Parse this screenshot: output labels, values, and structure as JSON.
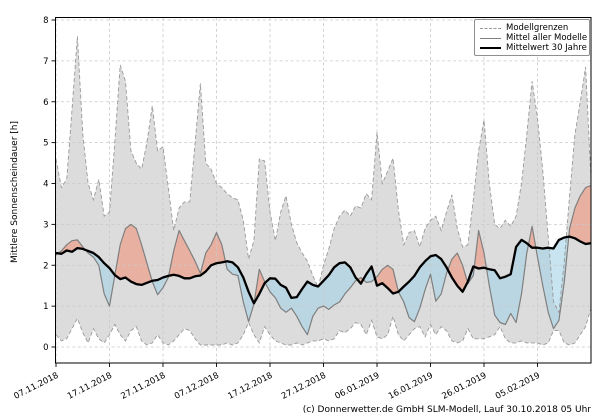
{
  "figure": {
    "ylabel": "Mittlere Sonnenscheindauer [h]",
    "footer": "(c) Donnerwetter.de GmbH SLM-Modell, Lauf 30.10.2018 05 Uhr"
  },
  "legend": {
    "items": [
      {
        "label": "Modellgrenzen",
        "style": "dashed-gray"
      },
      {
        "label": "Mittel aller Modelle",
        "style": "solid-gray"
      },
      {
        "label": "Mittelwert 30 Jahre",
        "style": "solid-black-thick"
      }
    ]
  },
  "chart_data": {
    "type": "line",
    "title": "",
    "xlabel": "",
    "ylabel": "Mittlere Sonnenscheindauer [h]",
    "grid": true,
    "legend_position": "upper right",
    "x_unit": "Tage ab 07.11.2018 (1 Punkt pro Tag)",
    "xlim": [
      0,
      100
    ],
    "ylim": [
      -0.4,
      8.1
    ],
    "y_ticks": [
      0,
      1,
      2,
      3,
      4,
      5,
      6,
      7,
      8
    ],
    "x_tick_days": [
      0,
      10,
      20,
      30,
      40,
      50,
      60,
      70,
      80,
      90
    ],
    "x_tick_labels": [
      "07.11.2018",
      "17.11.2018",
      "27.11.2018",
      "07.12.2018",
      "17.12.2018",
      "27.12.2018",
      "06.01.2019",
      "16.01.2019",
      "26.01.2019",
      "05.02.2019"
    ],
    "colors": {
      "band_fill": "#dcdcdc",
      "band_edge": "#999999",
      "model_mean_line": "#7f7f7f",
      "mean30_line": "#000000",
      "above_normal_fill": "#ee937a",
      "below_normal_fill": "#a3d2e6",
      "diff_fill_opacity": 0.6,
      "grid": "#c9c9c9"
    },
    "series": [
      {
        "name": "Modellgrenzen (Obergrenze)",
        "role": "upper_bound",
        "values": [
          4.6,
          3.9,
          4.1,
          5.8,
          7.6,
          5.2,
          4.0,
          3.6,
          4.1,
          3.2,
          3.3,
          5.0,
          6.9,
          6.5,
          4.8,
          4.5,
          4.35,
          5.0,
          5.9,
          4.8,
          4.9,
          3.9,
          2.85,
          3.4,
          3.55,
          3.55,
          5.0,
          6.45,
          4.5,
          4.35,
          4.0,
          3.9,
          3.75,
          3.65,
          3.6,
          3.1,
          2.15,
          2.6,
          4.6,
          4.55,
          3.3,
          2.6,
          3.3,
          3.7,
          3.0,
          2.55,
          2.3,
          2.1,
          1.75,
          1.45,
          2.0,
          2.4,
          2.9,
          3.2,
          3.35,
          3.2,
          3.45,
          3.4,
          3.75,
          3.6,
          5.25,
          4.0,
          4.3,
          4.62,
          3.35,
          2.5,
          2.8,
          2.85,
          2.45,
          2.9,
          3.1,
          3.2,
          2.85,
          3.3,
          3.72,
          2.9,
          2.45,
          2.5,
          3.6,
          4.8,
          5.55,
          4.0,
          3.0,
          2.9,
          3.1,
          2.95,
          3.2,
          4.0,
          5.2,
          6.5,
          5.6,
          4.3,
          2.7,
          1.1,
          0.85,
          2.1,
          3.7,
          5.2,
          6.0,
          6.85,
          4.1
        ]
      },
      {
        "name": "Modellgrenzen (Untergrenze)",
        "role": "lower_bound",
        "values": [
          0.3,
          0.15,
          0.2,
          0.45,
          0.7,
          0.35,
          0.1,
          0.45,
          0.2,
          0.1,
          0.3,
          0.55,
          0.3,
          0.15,
          0.4,
          0.5,
          0.15,
          0.05,
          0.1,
          0.3,
          0.1,
          0.05,
          0.15,
          0.3,
          0.45,
          0.4,
          0.2,
          0.05,
          0.05,
          0.05,
          0.05,
          0.05,
          0.1,
          0.05,
          0.1,
          0.3,
          0.6,
          0.3,
          0.1,
          0.5,
          0.3,
          0.15,
          0.1,
          0.05,
          0.05,
          0.1,
          0.05,
          0.1,
          0.15,
          0.15,
          0.2,
          0.15,
          0.2,
          0.4,
          0.35,
          0.45,
          0.6,
          0.55,
          0.3,
          0.65,
          0.25,
          0.2,
          0.3,
          0.75,
          0.3,
          0.15,
          0.3,
          0.45,
          0.5,
          0.25,
          0.55,
          0.3,
          0.5,
          0.4,
          0.15,
          0.1,
          0.15,
          0.45,
          0.2,
          0.2,
          0.2,
          0.25,
          0.3,
          0.5,
          0.2,
          0.1,
          0.1,
          0.15,
          0.1,
          0.1,
          0.1,
          0.05,
          0.1,
          0.4,
          0.4,
          0.1,
          0.05,
          0.1,
          0.3,
          0.5,
          0.95
        ]
      },
      {
        "name": "Mittel aller Modelle",
        "role": "model_mean",
        "values": [
          2.25,
          2.35,
          2.5,
          2.6,
          2.62,
          2.45,
          2.3,
          2.2,
          2.0,
          1.3,
          1.0,
          1.75,
          2.5,
          2.9,
          3.0,
          2.9,
          2.5,
          2.05,
          1.6,
          1.28,
          1.45,
          1.7,
          2.35,
          2.85,
          2.6,
          2.35,
          2.1,
          1.8,
          2.3,
          2.5,
          2.8,
          2.5,
          1.9,
          1.78,
          1.75,
          1.1,
          0.62,
          1.05,
          1.9,
          1.6,
          1.35,
          1.2,
          0.95,
          0.85,
          0.95,
          0.75,
          0.5,
          0.3,
          0.75,
          0.95,
          1.0,
          0.92,
          1.03,
          1.1,
          1.3,
          1.45,
          1.62,
          1.7,
          1.58,
          1.6,
          1.72,
          1.9,
          2.0,
          1.9,
          1.35,
          1.1,
          0.72,
          0.62,
          0.95,
          1.4,
          1.78,
          1.12,
          1.3,
          1.8,
          2.15,
          2.3,
          2.0,
          1.55,
          1.75,
          2.85,
          2.3,
          1.5,
          0.78,
          0.6,
          0.55,
          0.82,
          0.6,
          1.3,
          2.3,
          2.95,
          2.2,
          1.5,
          0.85,
          0.45,
          0.65,
          1.6,
          2.9,
          3.4,
          3.7,
          3.9,
          3.95
        ]
      },
      {
        "name": "Mittelwert 30 Jahre",
        "role": "mean_30y",
        "values": [
          2.3,
          2.28,
          2.36,
          2.33,
          2.42,
          2.4,
          2.35,
          2.3,
          2.2,
          2.05,
          1.93,
          1.76,
          1.66,
          1.7,
          1.6,
          1.54,
          1.52,
          1.57,
          1.62,
          1.64,
          1.7,
          1.74,
          1.77,
          1.74,
          1.68,
          1.68,
          1.73,
          1.75,
          1.85,
          2.0,
          2.05,
          2.07,
          2.1,
          2.07,
          1.95,
          1.7,
          1.35,
          1.07,
          1.3,
          1.56,
          1.68,
          1.67,
          1.52,
          1.45,
          1.2,
          1.22,
          1.42,
          1.6,
          1.52,
          1.48,
          1.62,
          1.76,
          1.95,
          2.05,
          2.07,
          1.95,
          1.7,
          1.55,
          1.78,
          1.97,
          1.5,
          1.56,
          1.44,
          1.31,
          1.35,
          1.48,
          1.6,
          1.74,
          1.95,
          2.1,
          2.22,
          2.25,
          2.15,
          1.95,
          1.7,
          1.5,
          1.35,
          1.6,
          1.97,
          1.92,
          1.94,
          1.9,
          1.88,
          1.68,
          1.72,
          1.78,
          2.45,
          2.62,
          2.54,
          2.43,
          2.43,
          2.41,
          2.43,
          2.41,
          2.62,
          2.68,
          2.7,
          2.66,
          2.58,
          2.52,
          2.54
        ]
      }
    ]
  }
}
